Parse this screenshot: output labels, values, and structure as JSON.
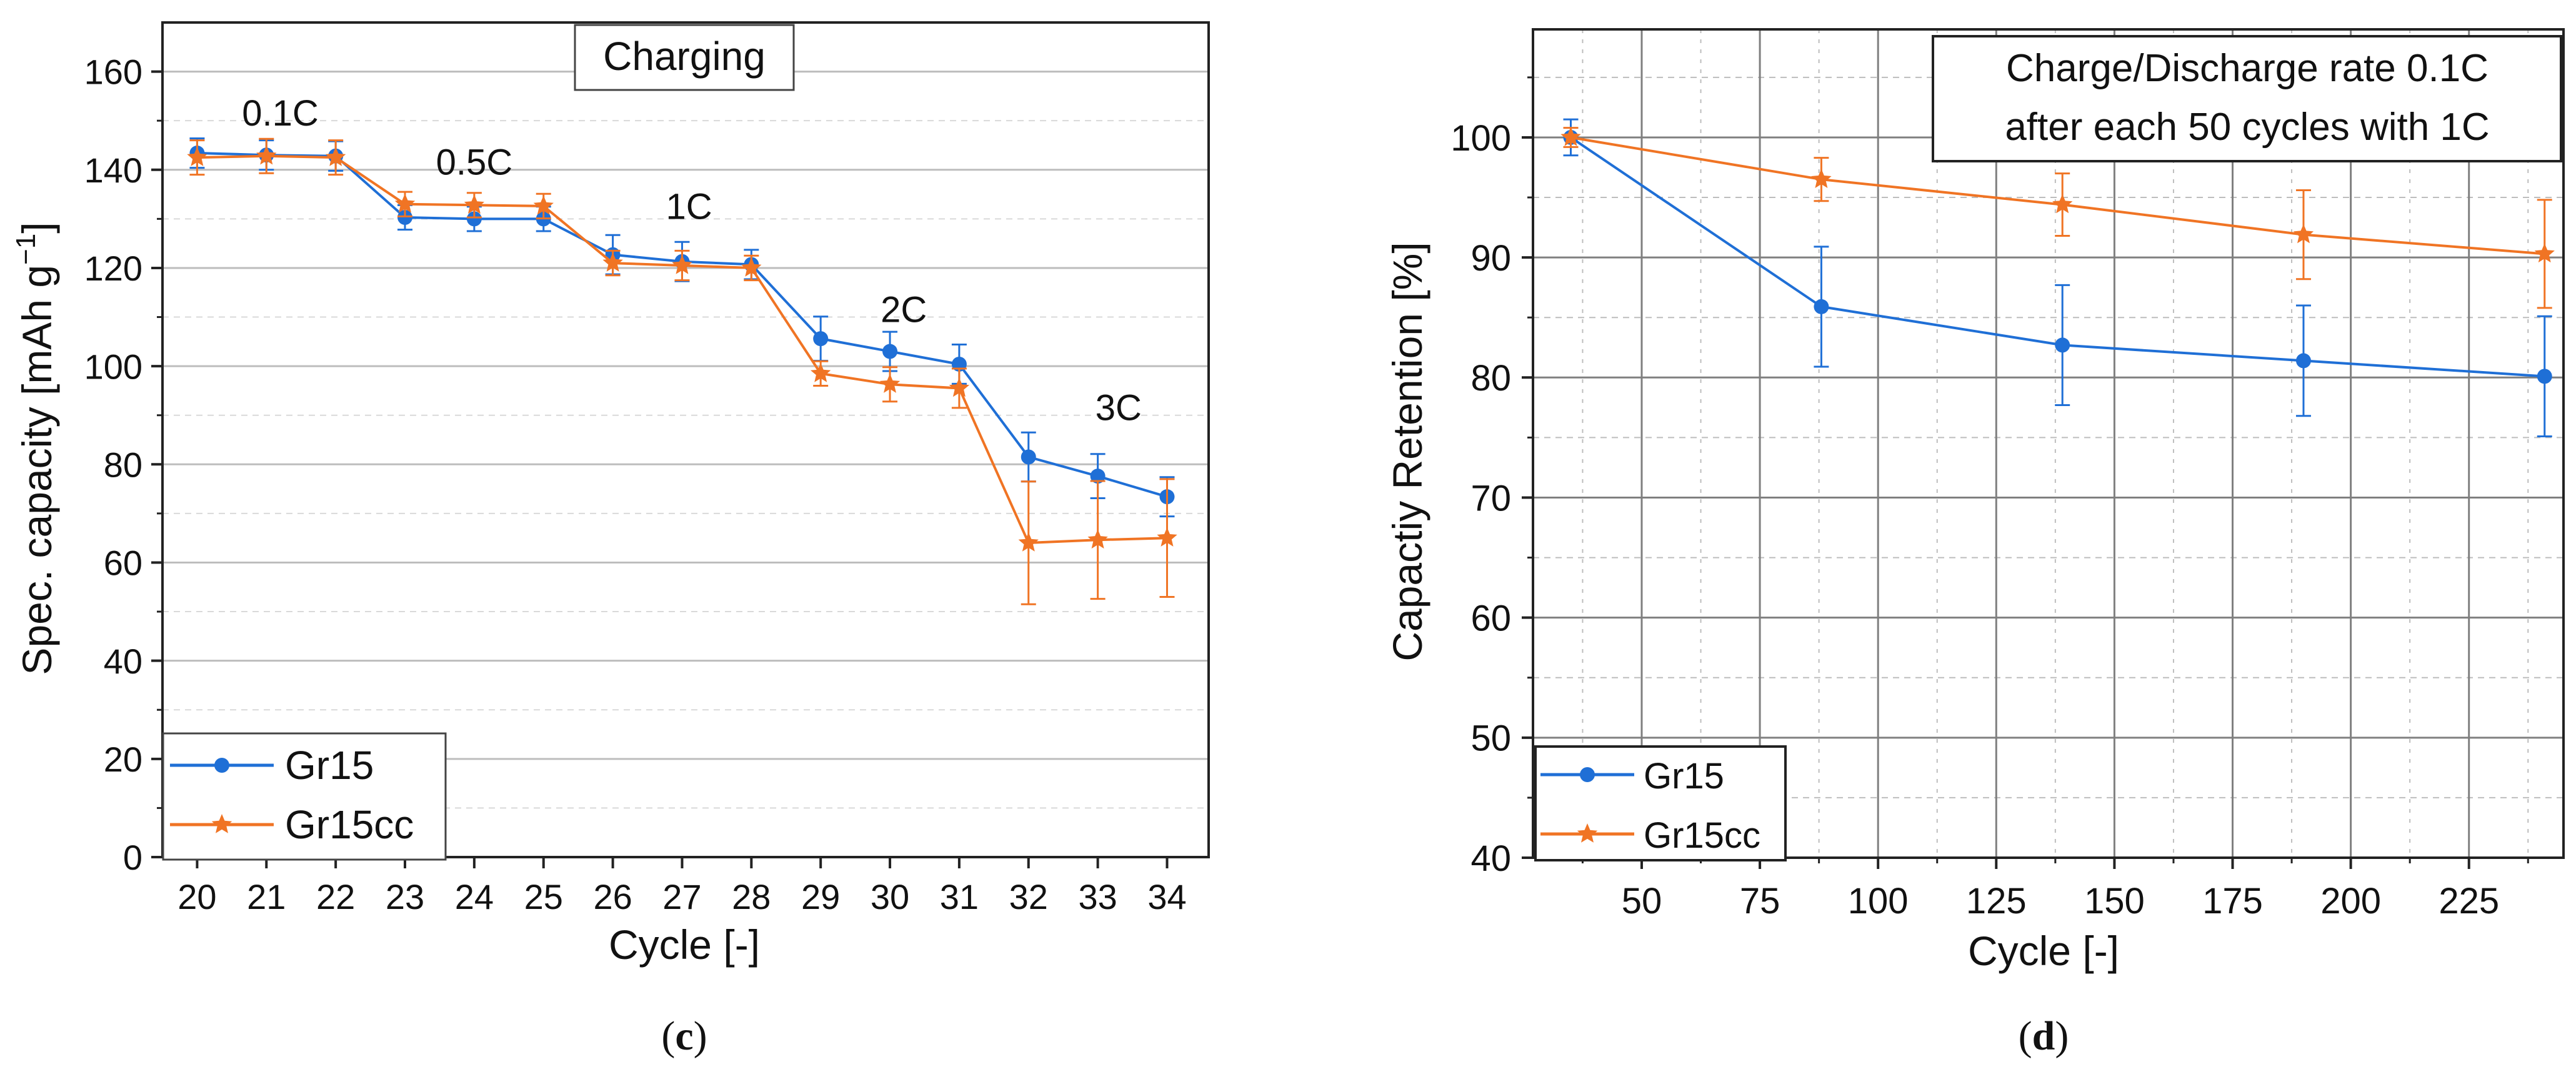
{
  "chart_data": [
    {
      "type": "line",
      "panel": "(c)",
      "panel_letter": "c",
      "title": "Charging",
      "xlabel": "Cycle [-]",
      "ylabel": "Spec. capacity [mAh g",
      "ylabel_sup": "−1",
      "ylabel_close": "]",
      "xlim": [
        19.5,
        34.6
      ],
      "ylim": [
        0,
        170
      ],
      "xticks": [
        20,
        21,
        22,
        23,
        24,
        25,
        26,
        27,
        28,
        29,
        30,
        31,
        32,
        33,
        34
      ],
      "yticks": [
        0,
        20,
        40,
        60,
        80,
        100,
        120,
        140,
        160
      ],
      "grid": true,
      "legend_position": "bottom-left",
      "annotations": [
        {
          "text": "0.1C",
          "x": 21.2,
          "y": 149
        },
        {
          "text": "0.5C",
          "x": 24.0,
          "y": 139
        },
        {
          "text": "1C",
          "x": 27.1,
          "y": 130
        },
        {
          "text": "2C",
          "x": 30.2,
          "y": 109
        },
        {
          "text": "3C",
          "x": 33.3,
          "y": 89
        }
      ],
      "series": [
        {
          "name": "Gr15",
          "color": "#1f6fd6",
          "marker": "circle",
          "x": [
            20,
            21,
            22,
            23,
            24,
            25,
            26,
            27,
            28,
            29,
            30,
            31,
            32,
            33,
            34
          ],
          "values": [
            143.4,
            143.0,
            142.8,
            130.3,
            130.0,
            130.0,
            122.7,
            121.3,
            120.7,
            105.6,
            103.0,
            100.4,
            81.5,
            77.6,
            73.4
          ],
          "errors": [
            3.0,
            3.0,
            3.0,
            2.5,
            2.5,
            2.5,
            4.0,
            4.0,
            3.0,
            4.5,
            4.0,
            4.0,
            5.0,
            4.5,
            4.0
          ]
        },
        {
          "name": "Gr15cc",
          "color": "#f07424",
          "marker": "star",
          "x": [
            20,
            21,
            22,
            23,
            24,
            25,
            26,
            27,
            28,
            29,
            30,
            31,
            32,
            33,
            34
          ],
          "values": [
            142.5,
            142.8,
            142.5,
            133.0,
            132.8,
            132.6,
            121.0,
            120.5,
            120.0,
            98.5,
            96.3,
            95.5,
            64.0,
            64.6,
            65.0
          ],
          "errors": [
            3.5,
            3.5,
            3.5,
            2.5,
            2.5,
            2.5,
            2.5,
            3.0,
            2.5,
            2.5,
            3.5,
            4.0,
            12.5,
            12.0,
            12.0
          ]
        }
      ]
    },
    {
      "type": "line",
      "panel": "(d)",
      "panel_letter": "d",
      "title_lines": [
        "Charge/Discharge rate 0.1C",
        "after each 50 cycles with 1C"
      ],
      "xlabel": "Cycle [-]",
      "ylabel": "Capactiy Retention [%]",
      "xlim": [
        27,
        245
      ],
      "ylim": [
        40,
        109
      ],
      "xticks": [
        50,
        75,
        100,
        125,
        150,
        175,
        200,
        225
      ],
      "yticks": [
        40,
        50,
        60,
        70,
        80,
        90,
        100
      ],
      "grid": true,
      "legend_position": "bottom-left",
      "series": [
        {
          "name": "Gr15",
          "color": "#1f6fd6",
          "marker": "circle",
          "x": [
            35,
            88,
            139,
            190,
            241
          ],
          "values": [
            100,
            85.9,
            82.7,
            81.4,
            80.1
          ],
          "errors": [
            1.5,
            5.0,
            5.0,
            4.6,
            5.0
          ]
        },
        {
          "name": "Gr15cc",
          "color": "#f07424",
          "marker": "star",
          "x": [
            35,
            88,
            139,
            190,
            241
          ],
          "values": [
            100,
            96.5,
            94.4,
            91.9,
            90.3
          ],
          "errors": [
            0.8,
            1.8,
            2.6,
            3.7,
            4.5
          ]
        }
      ]
    }
  ]
}
